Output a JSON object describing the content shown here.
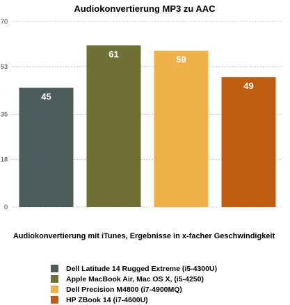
{
  "chart_data": {
    "type": "bar",
    "title": "Audiokonvertierung MP3 zu AAC",
    "xlabel": "Audiokonvertierung mit iTunes, Ergebnisse in x-facher Geschwindigkeit",
    "ylabel": "",
    "ylim": [
      0,
      70
    ],
    "yticks": [
      0,
      18,
      35,
      53,
      70
    ],
    "grid": true,
    "legend_position": "bottom",
    "series": [
      {
        "name": "Dell Latitude 14 Rugged Extreme (i5-4300U)",
        "value": 45,
        "label": "45",
        "color": "#4a5d5b"
      },
      {
        "name": "Apple MacBook Air, Mac OS X, (i5-4250)",
        "value": 61,
        "label": "61",
        "color": "#6e7133"
      },
      {
        "name": "Dell Precision M4800 (i7-4900MQ)",
        "value": 59,
        "label": "59",
        "color": "#efb04a"
      },
      {
        "name": "HP ZBook 14 (i7-4600U)",
        "value": 49,
        "label": "49",
        "color": "#c05c10"
      }
    ]
  }
}
